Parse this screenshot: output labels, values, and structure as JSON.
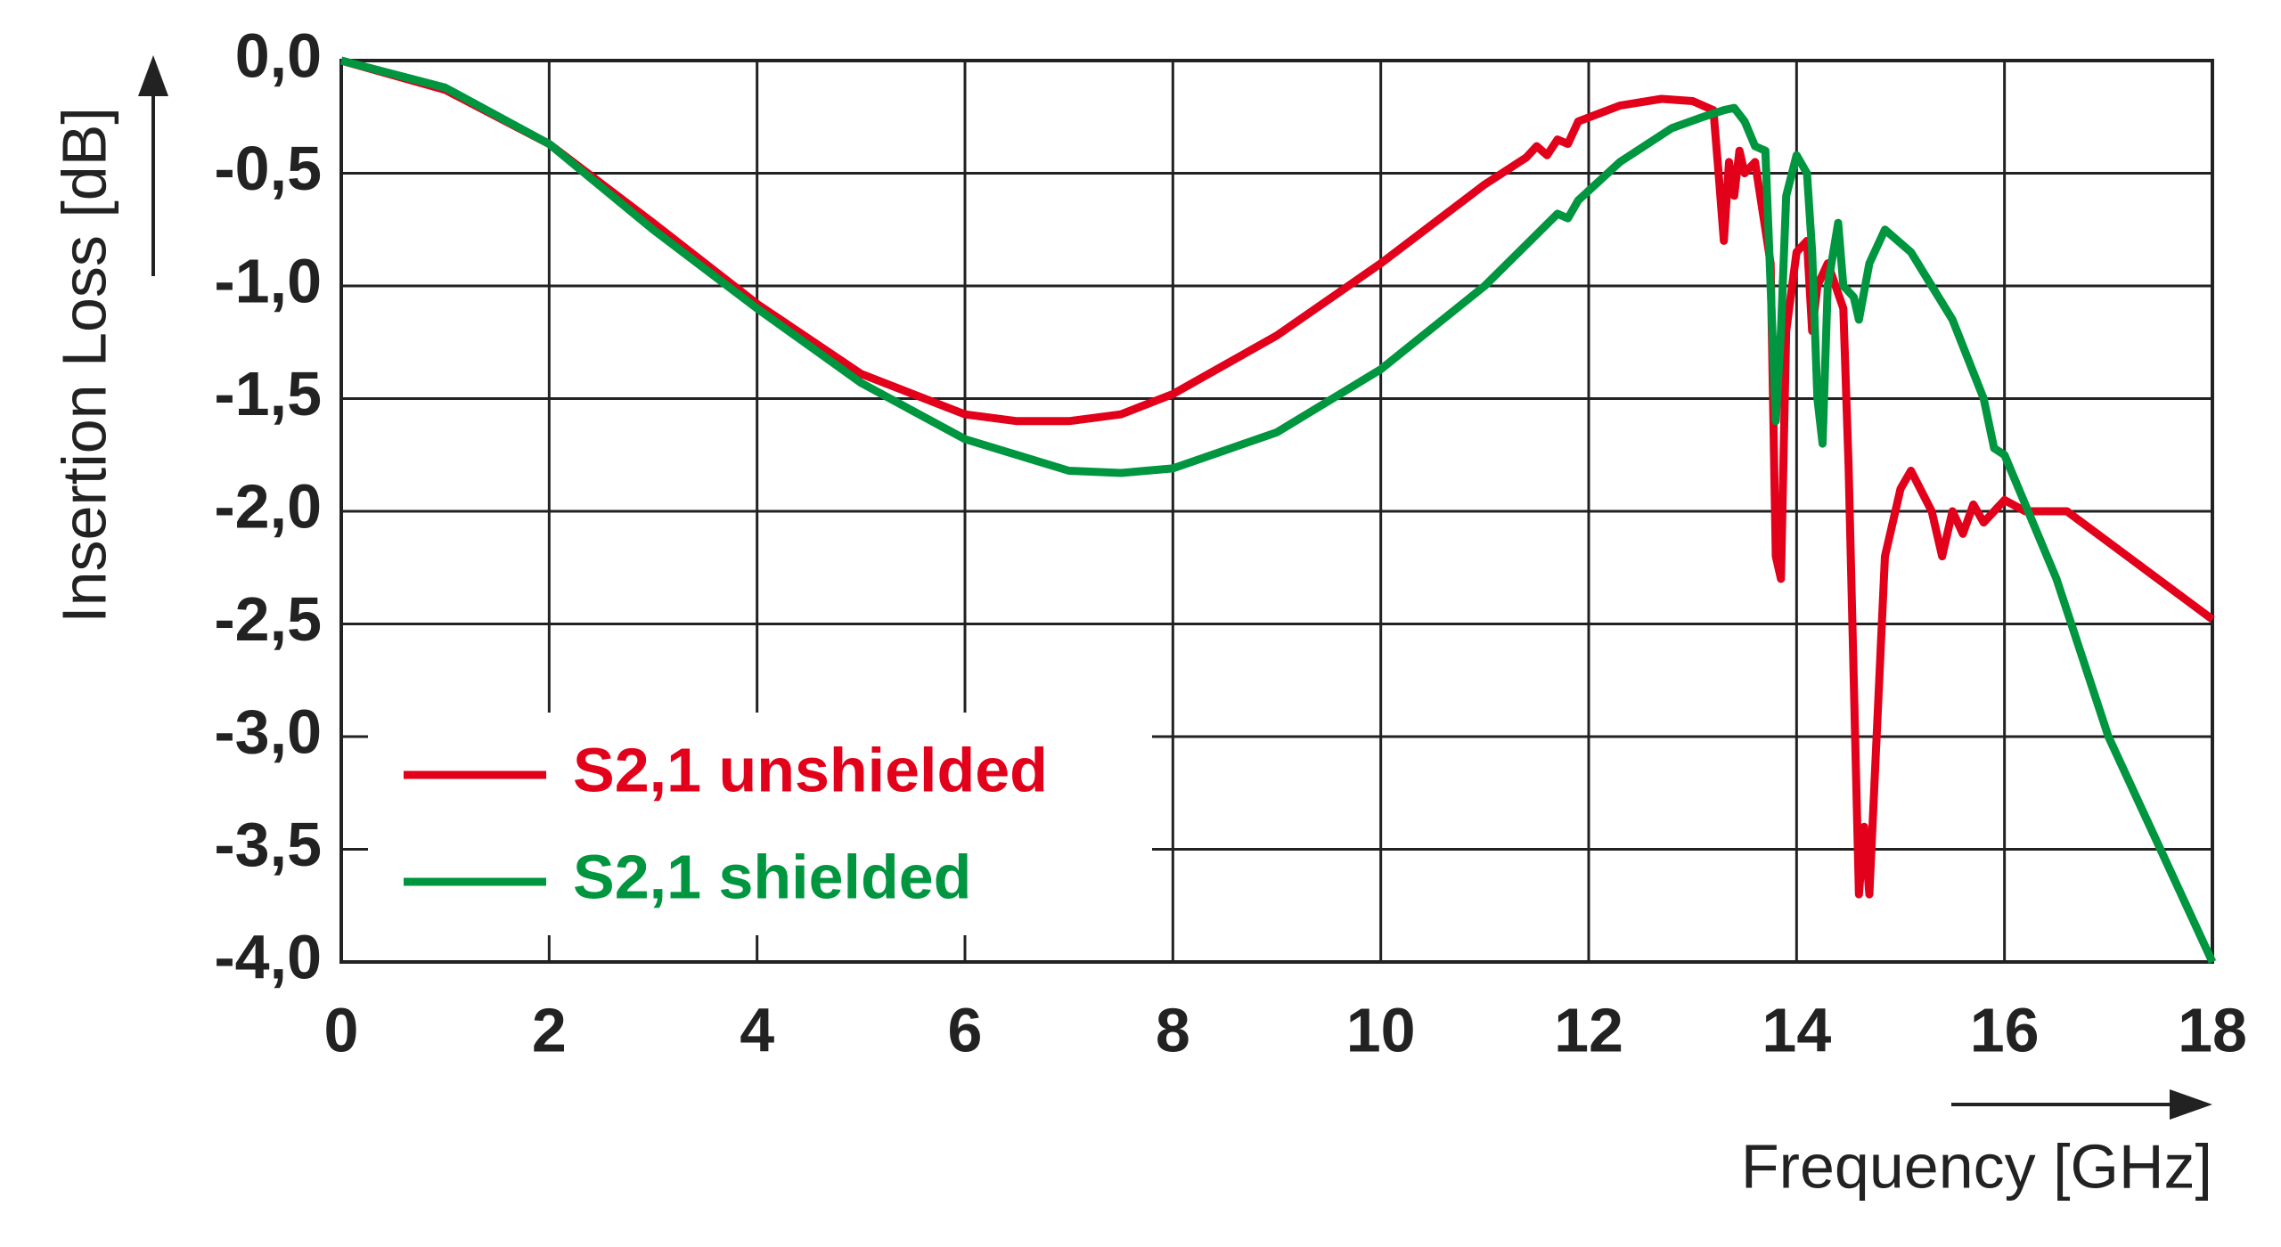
{
  "chart_data": {
    "type": "line",
    "xlabel": "Frequency [GHz]",
    "ylabel": "Insertion Loss [dB]",
    "xlim": [
      0,
      18
    ],
    "xticks": [
      0,
      2,
      4,
      6,
      8,
      10,
      12,
      14,
      16,
      18
    ],
    "ylim": [
      -4,
      0
    ],
    "yticks": [
      {
        "value": 0,
        "label": "0,0"
      },
      {
        "value": -0.5,
        "label": "-0,5"
      },
      {
        "value": -1,
        "label": "-1,0"
      },
      {
        "value": -1.5,
        "label": "-1,5"
      },
      {
        "value": -2,
        "label": "-2,0"
      },
      {
        "value": -2.5,
        "label": "-2,5"
      },
      {
        "value": -3,
        "label": "-3,0"
      },
      {
        "value": -3.5,
        "label": "-3,5"
      },
      {
        "value": -4,
        "label": "-4,0"
      }
    ],
    "grid": true,
    "legend": "lower left",
    "series": [
      {
        "name": "S2,1 unshielded",
        "color": "#e2001a",
        "x": [
          0,
          1,
          2,
          3,
          4,
          5,
          6,
          6.5,
          7,
          7.5,
          8,
          9,
          10,
          11,
          11.4,
          11.5,
          11.6,
          11.7,
          11.8,
          11.9,
          12.3,
          12.7,
          13.0,
          13.2,
          13.25,
          13.3,
          13.35,
          13.4,
          13.45,
          13.5,
          13.6,
          13.75,
          13.8,
          13.85,
          13.9,
          14.0,
          14.1,
          14.15,
          14.2,
          14.3,
          14.45,
          14.5,
          14.6,
          14.65,
          14.7,
          14.85,
          15.0,
          15.1,
          15.3,
          15.4,
          15.5,
          15.6,
          15.7,
          15.8,
          16.0,
          16.2,
          16.6,
          18
        ],
        "values": [
          0,
          -0.13,
          -0.37,
          -0.72,
          -1.08,
          -1.39,
          -1.57,
          -1.6,
          -1.6,
          -1.57,
          -1.48,
          -1.22,
          -0.9,
          -0.55,
          -0.43,
          -0.38,
          -0.42,
          -0.35,
          -0.37,
          -0.27,
          -0.2,
          -0.17,
          -0.18,
          -0.22,
          -0.5,
          -0.8,
          -0.45,
          -0.6,
          -0.4,
          -0.5,
          -0.45,
          -0.9,
          -2.2,
          -2.3,
          -1.2,
          -0.85,
          -0.8,
          -1.2,
          -1.0,
          -0.9,
          -1.1,
          -1.8,
          -3.7,
          -3.4,
          -3.7,
          -2.2,
          -1.9,
          -1.82,
          -2.0,
          -2.2,
          -2.0,
          -2.1,
          -1.97,
          -2.05,
          -1.95,
          -2.0,
          -2.0,
          -2.48
        ]
      },
      {
        "name": "S2,1 shielded",
        "color": "#00963f",
        "x": [
          0,
          1,
          2,
          3,
          4,
          5,
          6,
          7,
          7.5,
          8,
          9,
          10,
          11,
          11.7,
          11.8,
          11.9,
          12.3,
          12.8,
          13.1,
          13.3,
          13.4,
          13.5,
          13.6,
          13.7,
          13.75,
          13.8,
          13.85,
          13.9,
          14.0,
          14.1,
          14.15,
          14.2,
          14.25,
          14.3,
          14.4,
          14.45,
          14.55,
          14.6,
          14.7,
          14.85,
          15.1,
          15.5,
          15.8,
          15.9,
          16.0,
          16.5,
          17,
          17.5,
          18
        ],
        "values": [
          0,
          -0.12,
          -0.37,
          -0.75,
          -1.1,
          -1.43,
          -1.68,
          -1.82,
          -1.83,
          -1.81,
          -1.65,
          -1.37,
          -1.0,
          -0.68,
          -0.7,
          -0.62,
          -0.45,
          -0.3,
          -0.25,
          -0.22,
          -0.21,
          -0.27,
          -0.38,
          -0.4,
          -1.0,
          -1.6,
          -1.2,
          -0.6,
          -0.42,
          -0.5,
          -0.85,
          -1.5,
          -1.7,
          -1.0,
          -0.72,
          -1.0,
          -1.05,
          -1.15,
          -0.9,
          -0.75,
          -0.85,
          -1.15,
          -1.5,
          -1.72,
          -1.75,
          -2.3,
          -3.0,
          -3.5,
          -4.0
        ]
      }
    ]
  }
}
